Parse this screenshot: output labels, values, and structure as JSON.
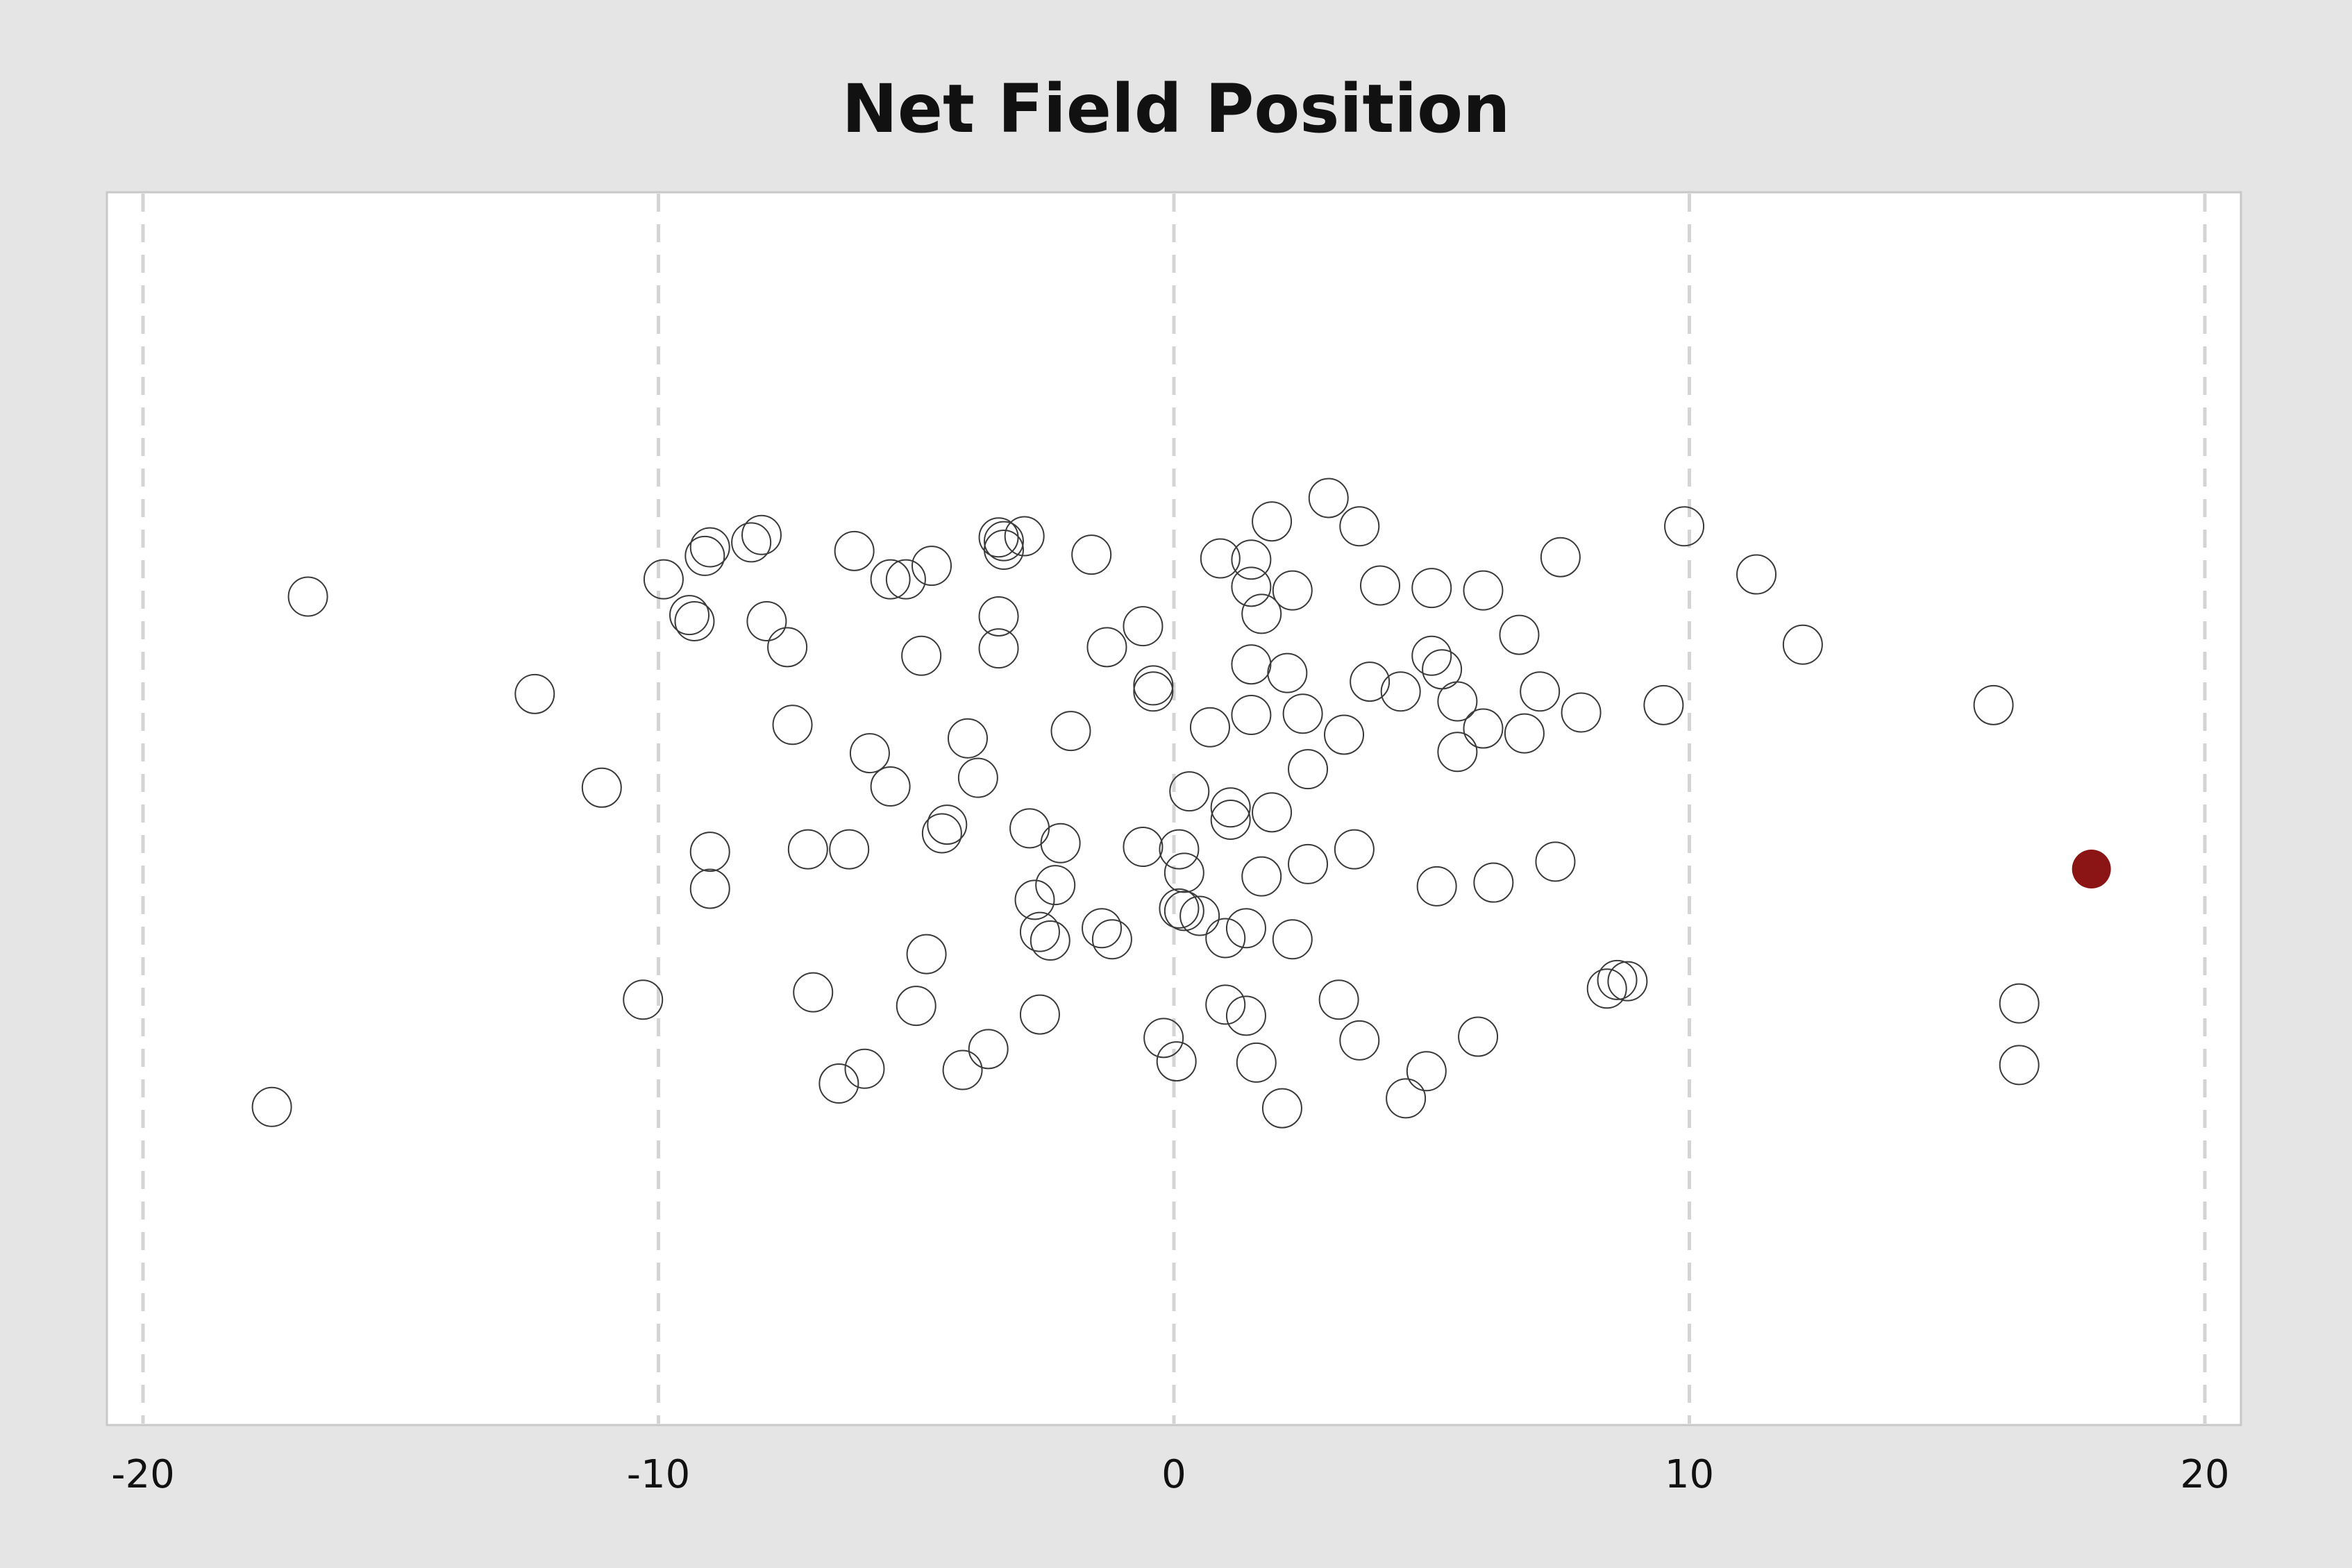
{
  "chart_data": {
    "type": "scatter",
    "title": "Net Field Position",
    "xlabel": "",
    "ylabel": "",
    "xlim": [
      -20.7,
      20.7
    ],
    "ylim": [
      0,
      1
    ],
    "x_ticks": [
      -20,
      -10,
      0,
      10,
      20
    ],
    "x_tick_labels": [
      "-20",
      "-10",
      "0",
      "10",
      "20"
    ],
    "grid": "vertical dashed at ticks",
    "y_axis_visible": false,
    "colors": {
      "page_bg": "#e5e5e5",
      "plot_bg": "#ffffff",
      "point_stroke": "#3a3a3a",
      "highlight": "#8b1414",
      "grid": "#d4d4d4"
    },
    "points": [
      {
        "x": -16.8,
        "y": 0.672
      },
      {
        "x": -17.5,
        "y": 0.258
      },
      {
        "x": -12.4,
        "y": 0.593
      },
      {
        "x": -11.1,
        "y": 0.517
      },
      {
        "x": -10.3,
        "y": 0.345
      },
      {
        "x": -9.9,
        "y": 0.686
      },
      {
        "x": -9.4,
        "y": 0.657
      },
      {
        "x": -9.3,
        "y": 0.652
      },
      {
        "x": -9.1,
        "y": 0.705
      },
      {
        "x": -9.0,
        "y": 0.712
      },
      {
        "x": -9.0,
        "y": 0.465
      },
      {
        "x": -9.0,
        "y": 0.435
      },
      {
        "x": -8.2,
        "y": 0.716
      },
      {
        "x": -8.0,
        "y": 0.722
      },
      {
        "x": -7.9,
        "y": 0.652
      },
      {
        "x": -7.5,
        "y": 0.631
      },
      {
        "x": -7.4,
        "y": 0.568
      },
      {
        "x": -7.1,
        "y": 0.467
      },
      {
        "x": -7.0,
        "y": 0.351
      },
      {
        "x": -6.5,
        "y": 0.277
      },
      {
        "x": -6.3,
        "y": 0.467
      },
      {
        "x": -6.2,
        "y": 0.709
      },
      {
        "x": -6.0,
        "y": 0.289
      },
      {
        "x": -5.9,
        "y": 0.545
      },
      {
        "x": -5.5,
        "y": 0.518
      },
      {
        "x": -5.5,
        "y": 0.686
      },
      {
        "x": -5.2,
        "y": 0.686
      },
      {
        "x": -5.0,
        "y": 0.34
      },
      {
        "x": -4.9,
        "y": 0.624
      },
      {
        "x": -4.8,
        "y": 0.382
      },
      {
        "x": -4.7,
        "y": 0.697
      },
      {
        "x": -4.5,
        "y": 0.48
      },
      {
        "x": -4.4,
        "y": 0.487
      },
      {
        "x": -4.1,
        "y": 0.288
      },
      {
        "x": -4.0,
        "y": 0.557
      },
      {
        "x": -3.8,
        "y": 0.525
      },
      {
        "x": -3.6,
        "y": 0.305
      },
      {
        "x": -3.4,
        "y": 0.656
      },
      {
        "x": -3.4,
        "y": 0.63
      },
      {
        "x": -3.4,
        "y": 0.72
      },
      {
        "x": -3.3,
        "y": 0.717
      },
      {
        "x": -3.3,
        "y": 0.71
      },
      {
        "x": -2.9,
        "y": 0.721
      },
      {
        "x": -2.8,
        "y": 0.484
      },
      {
        "x": -2.7,
        "y": 0.426
      },
      {
        "x": -2.6,
        "y": 0.333
      },
      {
        "x": -2.6,
        "y": 0.4
      },
      {
        "x": -2.4,
        "y": 0.393
      },
      {
        "x": -2.3,
        "y": 0.438
      },
      {
        "x": -2.2,
        "y": 0.472
      },
      {
        "x": -2.0,
        "y": 0.563
      },
      {
        "x": -1.6,
        "y": 0.706
      },
      {
        "x": -1.4,
        "y": 0.403
      },
      {
        "x": -1.3,
        "y": 0.631
      },
      {
        "x": -1.2,
        "y": 0.394
      },
      {
        "x": -0.6,
        "y": 0.648
      },
      {
        "x": -0.6,
        "y": 0.469
      },
      {
        "x": -0.4,
        "y": 0.6
      },
      {
        "x": -0.4,
        "y": 0.595
      },
      {
        "x": -0.2,
        "y": 0.314
      },
      {
        "x": 0.05,
        "y": 0.295
      },
      {
        "x": 0.1,
        "y": 0.467
      },
      {
        "x": 0.1,
        "y": 0.419
      },
      {
        "x": 0.2,
        "y": 0.448
      },
      {
        "x": 0.2,
        "y": 0.417
      },
      {
        "x": 0.3,
        "y": 0.514
      },
      {
        "x": 0.5,
        "y": 0.413
      },
      {
        "x": 0.7,
        "y": 0.566
      },
      {
        "x": 0.9,
        "y": 0.703
      },
      {
        "x": 1.0,
        "y": 0.341
      },
      {
        "x": 1.0,
        "y": 0.395
      },
      {
        "x": 1.1,
        "y": 0.501
      },
      {
        "x": 1.1,
        "y": 0.491
      },
      {
        "x": 1.4,
        "y": 0.332
      },
      {
        "x": 1.4,
        "y": 0.403
      },
      {
        "x": 1.5,
        "y": 0.702
      },
      {
        "x": 1.5,
        "y": 0.68
      },
      {
        "x": 1.5,
        "y": 0.617
      },
      {
        "x": 1.5,
        "y": 0.576
      },
      {
        "x": 1.6,
        "y": 0.294
      },
      {
        "x": 1.7,
        "y": 0.445
      },
      {
        "x": 1.7,
        "y": 0.658
      },
      {
        "x": 1.9,
        "y": 0.497
      },
      {
        "x": 1.9,
        "y": 0.733
      },
      {
        "x": 2.1,
        "y": 0.257
      },
      {
        "x": 2.2,
        "y": 0.61
      },
      {
        "x": 2.3,
        "y": 0.394
      },
      {
        "x": 2.3,
        "y": 0.677
      },
      {
        "x": 2.5,
        "y": 0.577
      },
      {
        "x": 2.6,
        "y": 0.532
      },
      {
        "x": 2.6,
        "y": 0.455
      },
      {
        "x": 3.0,
        "y": 0.752
      },
      {
        "x": 3.2,
        "y": 0.345
      },
      {
        "x": 3.3,
        "y": 0.56
      },
      {
        "x": 3.5,
        "y": 0.467
      },
      {
        "x": 3.6,
        "y": 0.729
      },
      {
        "x": 3.6,
        "y": 0.312
      },
      {
        "x": 3.8,
        "y": 0.603
      },
      {
        "x": 4.0,
        "y": 0.681
      },
      {
        "x": 4.4,
        "y": 0.595
      },
      {
        "x": 4.5,
        "y": 0.265
      },
      {
        "x": 4.9,
        "y": 0.287
      },
      {
        "x": 5.0,
        "y": 0.624
      },
      {
        "x": 5.0,
        "y": 0.679
      },
      {
        "x": 5.1,
        "y": 0.437
      },
      {
        "x": 5.2,
        "y": 0.613
      },
      {
        "x": 5.5,
        "y": 0.587
      },
      {
        "x": 5.5,
        "y": 0.546
      },
      {
        "x": 5.9,
        "y": 0.315
      },
      {
        "x": 6.0,
        "y": 0.565
      },
      {
        "x": 6.0,
        "y": 0.677
      },
      {
        "x": 6.2,
        "y": 0.44
      },
      {
        "x": 6.7,
        "y": 0.641
      },
      {
        "x": 6.8,
        "y": 0.561
      },
      {
        "x": 7.1,
        "y": 0.595
      },
      {
        "x": 7.4,
        "y": 0.457
      },
      {
        "x": 7.5,
        "y": 0.704
      },
      {
        "x": 7.9,
        "y": 0.578
      },
      {
        "x": 8.4,
        "y": 0.354
      },
      {
        "x": 8.6,
        "y": 0.361
      },
      {
        "x": 8.8,
        "y": 0.36
      },
      {
        "x": 9.5,
        "y": 0.584
      },
      {
        "x": 9.9,
        "y": 0.729
      },
      {
        "x": 11.3,
        "y": 0.69
      },
      {
        "x": 12.2,
        "y": 0.633
      },
      {
        "x": 15.9,
        "y": 0.584
      },
      {
        "x": 16.4,
        "y": 0.292
      },
      {
        "x": 16.4,
        "y": 0.342
      }
    ],
    "highlight_points": [
      {
        "x": 17.8,
        "y": 0.451
      }
    ]
  }
}
